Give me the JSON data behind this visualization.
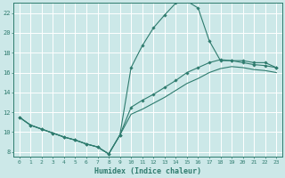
{
  "xlabel": "Humidex (Indice chaleur)",
  "ylabel": "",
  "background_color": "#cce8e8",
  "grid_color": "#ffffff",
  "line_color": "#2e7b6e",
  "xlim": [
    -0.5,
    23.5
  ],
  "ylim": [
    7.5,
    23.0
  ],
  "xticks": [
    0,
    1,
    2,
    3,
    4,
    5,
    6,
    7,
    8,
    9,
    10,
    11,
    12,
    13,
    14,
    15,
    16,
    17,
    18,
    19,
    20,
    21,
    22,
    23
  ],
  "yticks": [
    8,
    10,
    12,
    14,
    16,
    18,
    20,
    22
  ],
  "line1_x": [
    0,
    1,
    2,
    3,
    4,
    5,
    6,
    7,
    8,
    9,
    10,
    11,
    12,
    13,
    14,
    15,
    16,
    17,
    18,
    19,
    20,
    21,
    22,
    23
  ],
  "line1_y": [
    11.5,
    10.7,
    10.3,
    9.9,
    9.5,
    9.2,
    8.8,
    8.5,
    7.8,
    9.7,
    16.5,
    18.7,
    20.5,
    21.8,
    23.0,
    23.2,
    22.5,
    19.2,
    17.2,
    17.2,
    17.2,
    17.0,
    17.0,
    16.5
  ],
  "line2_x": [
    0,
    1,
    2,
    3,
    4,
    5,
    6,
    7,
    8,
    9,
    10,
    11,
    12,
    13,
    14,
    15,
    16,
    17,
    18,
    19,
    20,
    21,
    22,
    23
  ],
  "line2_y": [
    11.5,
    10.7,
    10.3,
    9.9,
    9.5,
    9.2,
    8.8,
    8.5,
    7.8,
    9.7,
    12.5,
    13.2,
    13.8,
    14.5,
    15.2,
    16.0,
    16.5,
    17.0,
    17.3,
    17.2,
    17.0,
    16.8,
    16.7,
    16.5
  ],
  "line3_x": [
    0,
    1,
    2,
    3,
    4,
    5,
    6,
    7,
    8,
    9,
    10,
    11,
    12,
    13,
    14,
    15,
    16,
    17,
    18,
    19,
    20,
    21,
    22,
    23
  ],
  "line3_y": [
    11.5,
    10.7,
    10.3,
    9.9,
    9.5,
    9.2,
    8.8,
    8.5,
    7.8,
    9.7,
    11.8,
    12.3,
    12.9,
    13.5,
    14.2,
    14.9,
    15.4,
    16.0,
    16.4,
    16.6,
    16.5,
    16.3,
    16.2,
    16.0
  ]
}
